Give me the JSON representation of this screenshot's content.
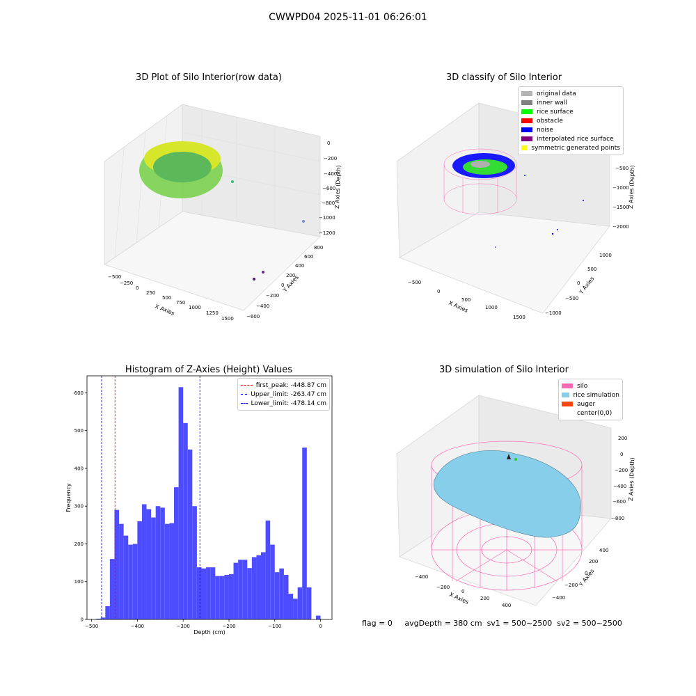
{
  "suptitle": "CWWPD04 2025-11-01 06:26:01",
  "footer": {
    "flag": "flag = 0",
    "avg_depth": "avgDepth = 380 cm",
    "sv1": "sv1 = 500~2500",
    "sv2": "sv2 = 500~2500"
  },
  "panel_raw": {
    "title": "3D Plot of Silo Interior(row data)",
    "xlabel": "X Axies",
    "ylabel": "Y Axies",
    "zlabel": "Z Axies (Depth)",
    "xticks": [
      "−500",
      "−250",
      "0",
      "250",
      "500",
      "750",
      "1000",
      "1250",
      "1500"
    ],
    "yticks": [
      "−600",
      "−400",
      "−200",
      "0",
      "200",
      "400",
      "600",
      "800"
    ],
    "zticks": [
      "0",
      "−200",
      "−400",
      "−600",
      "−800",
      "−1000",
      "−1200"
    ]
  },
  "panel_classify": {
    "title": "3D classify of Silo Interior",
    "xlabel": "X Axies",
    "ylabel": "Y Axies",
    "zlabel": "Z Axies (Depth)",
    "xticks": [
      "−500",
      "0",
      "500",
      "1000",
      "1500"
    ],
    "yticks": [
      "−1000",
      "−500",
      "0",
      "500",
      "1000"
    ],
    "zticks": [
      "0",
      "−500",
      "−1000",
      "−1500",
      "−2000"
    ],
    "legend": [
      {
        "label": "original data",
        "color": "#b3b3b3"
      },
      {
        "label": "inner wall",
        "color": "#808080"
      },
      {
        "label": "rice surface",
        "color": "#00ff00"
      },
      {
        "label": "obstacle",
        "color": "#ff0000"
      },
      {
        "label": "noise",
        "color": "#0000ff"
      },
      {
        "label": "interpolated rice surface",
        "color": "#800080"
      },
      {
        "label": "symmetric generated points",
        "color": "#ffff00"
      }
    ]
  },
  "panel_sim": {
    "title": "3D simulation of Silo Interior",
    "xlabel": "X Axies",
    "ylabel": "Y Axies",
    "zlabel": "Z Axies (Depth)",
    "xticks": [
      "−400",
      "−200",
      "0",
      "200",
      "400"
    ],
    "yticks": [
      "−400",
      "−200",
      "0",
      "200",
      "400"
    ],
    "zticks": [
      "200",
      "0",
      "−200",
      "−400",
      "−600",
      "−800"
    ],
    "legend": [
      {
        "label": "silo",
        "color": "#ff69b4"
      },
      {
        "label": "rice simulation",
        "color": "#87ceeb"
      },
      {
        "label": "auger",
        "color": "#ff4500"
      },
      {
        "label": "center(0,0)",
        "color": "#ffffff"
      }
    ]
  },
  "chart_data": {
    "type": "bar",
    "title": "Histogram of Z-Axies (Height) Values",
    "xlabel": "Depth (cm)",
    "ylabel": "Frequency",
    "xlim": [
      -510,
      25
    ],
    "ylim": [
      0,
      645
    ],
    "xticks": [
      -500,
      -400,
      -300,
      -200,
      -100,
      0
    ],
    "yticks": [
      0,
      100,
      200,
      300,
      400,
      500,
      600
    ],
    "bar_color": "#4d4dff",
    "bins": {
      "start": -490,
      "width": 10,
      "counts": [
        2,
        5,
        35,
        160,
        290,
        253,
        222,
        198,
        200,
        260,
        305,
        292,
        270,
        300,
        296,
        253,
        255,
        350,
        615,
        520,
        450,
        300,
        138,
        135,
        138,
        138,
        115,
        115,
        118,
        120,
        150,
        158,
        158,
        136,
        165,
        170,
        178,
        262,
        198,
        125,
        135,
        118,
        68,
        55,
        85,
        455,
        85,
        0,
        10
      ]
    },
    "lines": [
      {
        "label": "first_peak: -448.87 cm",
        "x": -448.87,
        "color": "#ff0000"
      },
      {
        "label": "Upper_limit: -263.47 cm",
        "x": -263.47,
        "color": "#0000ff"
      },
      {
        "label": "Lower_limit: -478.14 cm",
        "x": -478.14,
        "color": "#0000ff"
      }
    ]
  }
}
